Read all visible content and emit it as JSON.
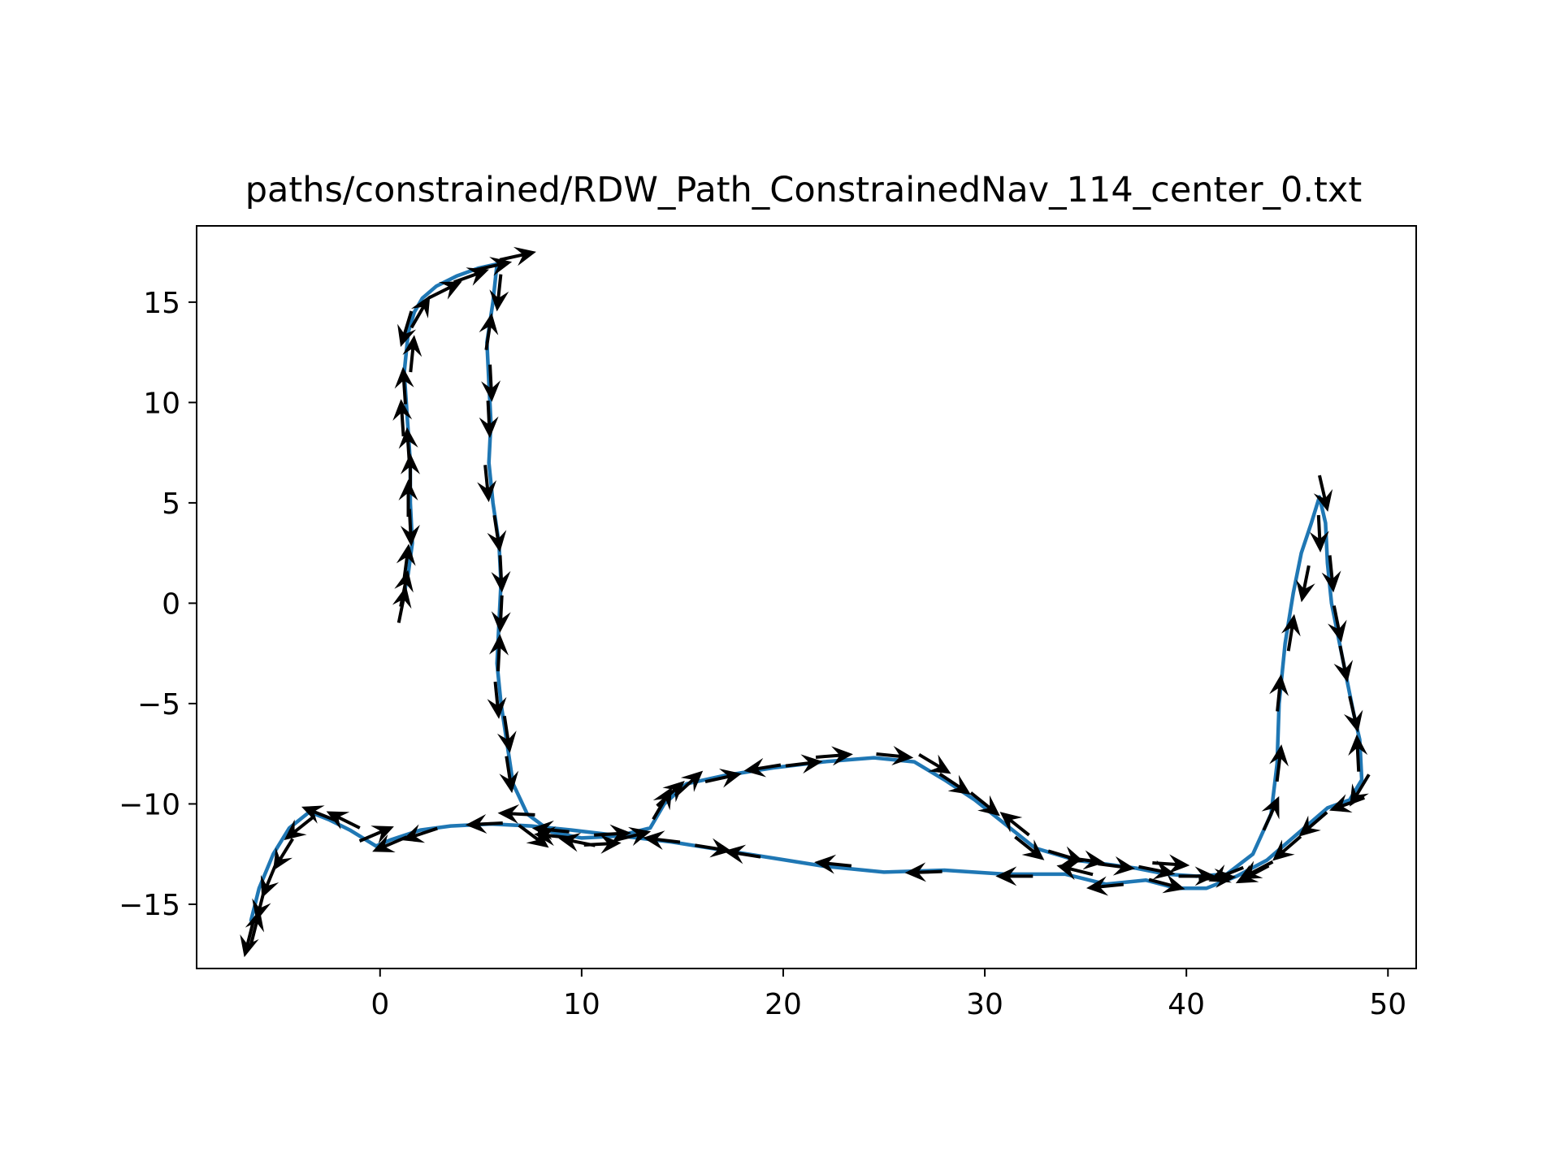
{
  "chart_data": {
    "type": "line",
    "title": "paths/constrained/RDW_Path_ConstrainedNav_114_center_0.txt",
    "xlabel": "",
    "ylabel": "",
    "xlim": [
      -9.1,
      51.4
    ],
    "ylim": [
      -18.2,
      18.8
    ],
    "x_ticks": [
      0,
      10,
      20,
      30,
      40,
      50
    ],
    "y_ticks": [
      -15,
      -10,
      -5,
      0,
      5,
      10,
      15
    ],
    "x_tick_labels": [
      "0",
      "10",
      "20",
      "30",
      "40",
      "50"
    ],
    "y_tick_labels": [
      "−15",
      "−10",
      "−5",
      "0",
      "5",
      "10",
      "15"
    ],
    "grid": false,
    "legend": "none",
    "colors": {
      "path": "#1f77b4",
      "arrows": "#000000",
      "frame": "#000000"
    },
    "series": [
      {
        "x": [
          1.2,
          1.4,
          1.6,
          1.5,
          1.5,
          1.4,
          1.3,
          1.2,
          1.3,
          1.4,
          1.7,
          2.1,
          2.8,
          3.8,
          4.9,
          5.8,
          5.6,
          5.3,
          5.4,
          5.5,
          5.4,
          5.6,
          5.9,
          6.0,
          5.9,
          5.8,
          6.0,
          6.3,
          6.6,
          7.3,
          8.5,
          10.0,
          11.8,
          13.4,
          14.1,
          15.2,
          17.0,
          19.5,
          22.0,
          24.5,
          26.5,
          28.0,
          29.5,
          31.0,
          32.5,
          34.5,
          36.0,
          37.5,
          39.0,
          40.5,
          42.0,
          43.3,
          44.2,
          44.5,
          44.6,
          44.9,
          45.3,
          45.7,
          46.2,
          46.6,
          46.9,
          47.0,
          47.2,
          47.6,
          48.0,
          48.3,
          48.6,
          48.7,
          48.1,
          47.0,
          45.5,
          44.0,
          42.5,
          41.0,
          39.5,
          38.0,
          36.0,
          34.0,
          31.0,
          28.0,
          25.0,
          22.0,
          19.5,
          17.0,
          14.5,
          12.0,
          9.5,
          7.5,
          5.5,
          3.5,
          2.0,
          0.5,
          -0.2,
          -1.5,
          -2.5,
          -3.5,
          -4.5,
          -5.3,
          -6.0,
          -6.4
        ],
        "y": [
          0.5,
          1.5,
          3.0,
          5.0,
          7.0,
          8.5,
          10.0,
          11.5,
          12.5,
          13.5,
          14.5,
          15.2,
          15.8,
          16.3,
          16.7,
          16.9,
          15.0,
          13.0,
          11.0,
          9.0,
          7.0,
          5.0,
          3.0,
          1.0,
          -1.0,
          -3.0,
          -5.0,
          -7.0,
          -9.0,
          -10.5,
          -11.4,
          -11.7,
          -11.6,
          -11.2,
          -10.0,
          -9.0,
          -8.6,
          -8.2,
          -7.9,
          -7.7,
          -7.9,
          -8.8,
          -9.8,
          -11.0,
          -12.2,
          -12.8,
          -13.0,
          -13.2,
          -13.5,
          -13.6,
          -13.5,
          -12.5,
          -10.5,
          -8.0,
          -5.0,
          -2.0,
          0.5,
          2.5,
          4.0,
          5.3,
          4.0,
          2.0,
          0.0,
          -2.0,
          -4.0,
          -5.5,
          -6.8,
          -8.8,
          -9.8,
          -10.2,
          -11.5,
          -12.8,
          -13.6,
          -14.2,
          -14.2,
          -13.8,
          -14.0,
          -13.5,
          -13.5,
          -13.3,
          -13.4,
          -13.1,
          -12.7,
          -12.3,
          -11.9,
          -11.6,
          -11.3,
          -11.1,
          -11.0,
          -11.1,
          -11.3,
          -11.8,
          -12.1,
          -11.3,
          -10.8,
          -10.4,
          -11.2,
          -12.5,
          -14.2,
          -15.8
        ]
      }
    ],
    "quiver": {
      "note": "",
      "points": [
        [
          1.1,
          -0.1
        ],
        [
          1.2,
          0.7
        ],
        [
          1.3,
          2.0
        ],
        [
          1.5,
          3.8
        ],
        [
          1.4,
          5.2
        ],
        [
          1.5,
          6.5
        ],
        [
          1.4,
          7.8
        ],
        [
          1.1,
          9.2
        ],
        [
          1.2,
          10.8
        ],
        [
          1.6,
          12.4
        ],
        [
          1.3,
          13.7
        ],
        [
          2.0,
          14.5
        ],
        [
          3.2,
          15.6
        ],
        [
          4.5,
          16.3
        ],
        [
          5.6,
          16.8
        ],
        [
          6.8,
          17.3
        ],
        [
          5.9,
          15.5
        ],
        [
          5.4,
          13.5
        ],
        [
          5.5,
          11.0
        ],
        [
          5.4,
          9.2
        ],
        [
          5.3,
          6.0
        ],
        [
          5.8,
          3.5
        ],
        [
          6.0,
          1.5
        ],
        [
          6.0,
          -0.5
        ],
        [
          5.9,
          -2.5
        ],
        [
          5.8,
          -4.8
        ],
        [
          6.3,
          -6.5
        ],
        [
          6.4,
          -8.5
        ],
        [
          6.8,
          -10.5
        ],
        [
          7.6,
          -11.6
        ],
        [
          8.6,
          -11.6
        ],
        [
          9.8,
          -11.9
        ],
        [
          11.0,
          -12.0
        ],
        [
          12.5,
          -11.6
        ],
        [
          14.0,
          -10.0
        ],
        [
          14.4,
          -9.5
        ],
        [
          15.3,
          -9.0
        ],
        [
          17.0,
          -8.7
        ],
        [
          19.0,
          -8.2
        ],
        [
          21.0,
          -8.0
        ],
        [
          22.5,
          -7.6
        ],
        [
          25.5,
          -7.6
        ],
        [
          27.5,
          -8.0
        ],
        [
          28.5,
          -9.0
        ],
        [
          30.0,
          -10.0
        ],
        [
          31.5,
          -11.0
        ],
        [
          32.2,
          -12.2
        ],
        [
          34.0,
          -12.6
        ],
        [
          35.0,
          -12.8
        ],
        [
          36.5,
          -13.1
        ],
        [
          38.5,
          -13.3
        ],
        [
          39.2,
          -13.0
        ],
        [
          40.5,
          -13.6
        ],
        [
          42.0,
          -13.5
        ],
        [
          43.5,
          -13.3
        ],
        [
          44.2,
          -10.5
        ],
        [
          44.6,
          -8.0
        ],
        [
          44.6,
          -4.5
        ],
        [
          45.2,
          -1.5
        ],
        [
          45.9,
          1.0
        ],
        [
          46.6,
          3.5
        ],
        [
          46.8,
          5.5
        ],
        [
          47.2,
          1.5
        ],
        [
          47.5,
          -1.0
        ],
        [
          47.8,
          -3.0
        ],
        [
          48.3,
          -5.5
        ],
        [
          48.5,
          -7.5
        ],
        [
          48.6,
          -9.3
        ],
        [
          48.0,
          -10.0
        ],
        [
          46.3,
          -11.0
        ],
        [
          45.0,
          -12.2
        ],
        [
          43.3,
          -13.5
        ],
        [
          41.5,
          -13.7
        ],
        [
          39.0,
          -14.0
        ],
        [
          36.0,
          -14.1
        ],
        [
          34.5,
          -13.3
        ],
        [
          31.5,
          -13.6
        ],
        [
          27.0,
          -13.4
        ],
        [
          22.5,
          -13.0
        ],
        [
          18.0,
          -12.5
        ],
        [
          16.5,
          -12.2
        ],
        [
          14.0,
          -11.8
        ],
        [
          11.5,
          -11.5
        ],
        [
          8.5,
          -11.3
        ],
        [
          5.2,
          -11.0
        ],
        [
          2.0,
          -11.5
        ],
        [
          0.5,
          -12.0
        ],
        [
          -0.2,
          -11.5
        ],
        [
          -1.8,
          -10.8
        ],
        [
          -3.0,
          -10.5
        ],
        [
          -4.0,
          -11.2
        ],
        [
          -4.8,
          -12.5
        ],
        [
          -5.5,
          -13.8
        ],
        [
          -5.9,
          -14.9
        ],
        [
          -6.2,
          -16.2
        ],
        [
          -6.5,
          -16.7
        ]
      ]
    }
  }
}
